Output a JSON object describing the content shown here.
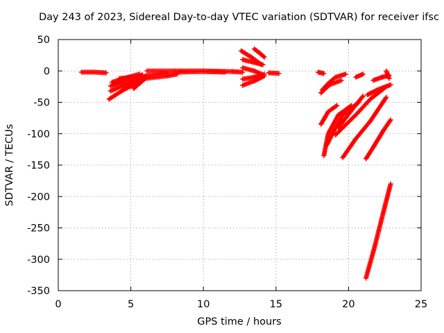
{
  "chart_data": {
    "type": "scatter",
    "title": "Day 243 of 2023, Sidereal Day-to-day VTEC variation (SDTVAR) for receiver ifsc",
    "xlabel": "GPS time / hours",
    "ylabel": "SDTVAR / TECUs",
    "xlim": [
      0,
      25
    ],
    "ylim": [
      -350,
      50
    ],
    "x_ticks": [
      "0",
      "5",
      "10",
      "15",
      "20",
      "25"
    ],
    "y_ticks": [
      "50",
      "0",
      "-50",
      "-100",
      "-150",
      "-200",
      "-250",
      "-300",
      "-350"
    ],
    "grid": true,
    "marker": "plus",
    "color": "#ff0000",
    "series": [
      {
        "points": [
          [
            1.6,
            -2
          ],
          [
            2.5,
            -2
          ],
          [
            3.3,
            -3
          ]
        ]
      },
      {
        "points": [
          [
            3.5,
            -45
          ],
          [
            4.5,
            -30
          ],
          [
            5.8,
            -15
          ]
        ]
      },
      {
        "points": [
          [
            3.6,
            -32
          ],
          [
            4.6,
            -22
          ],
          [
            5.9,
            -10
          ]
        ]
      },
      {
        "points": [
          [
            3.6,
            -24
          ],
          [
            4.6,
            -16
          ],
          [
            5.8,
            -6
          ]
        ]
      },
      {
        "points": [
          [
            3.7,
            -18
          ],
          [
            4.5,
            -12
          ],
          [
            5.6,
            -5
          ]
        ]
      },
      {
        "points": [
          [
            4.2,
            -12
          ],
          [
            5.2,
            -10
          ]
        ]
      },
      {
        "points": [
          [
            5.2,
            -28
          ],
          [
            6,
            -12
          ],
          [
            7.5,
            -8
          ],
          [
            8.2,
            -5
          ]
        ]
      },
      {
        "points": [
          [
            5.0,
            -20
          ],
          [
            6.0,
            -8
          ],
          [
            7.5,
            -3
          ]
        ]
      },
      {
        "points": [
          [
            6.1,
            0
          ],
          [
            8,
            0
          ],
          [
            10,
            0
          ],
          [
            12,
            -1
          ],
          [
            12.7,
            -2
          ]
        ]
      },
      {
        "points": [
          [
            8.2,
            -2
          ],
          [
            10,
            -1
          ],
          [
            11.5,
            -2
          ]
        ]
      },
      {
        "points": [
          [
            12.6,
            32
          ],
          [
            13.3,
            22
          ],
          [
            14.0,
            10
          ]
        ]
      },
      {
        "points": [
          [
            13.5,
            35
          ],
          [
            13.9,
            28
          ],
          [
            14.2,
            22
          ]
        ]
      },
      {
        "points": [
          [
            12.7,
            18
          ],
          [
            13.4,
            14
          ],
          [
            14.1,
            10
          ]
        ]
      },
      {
        "points": [
          [
            12.7,
            5
          ],
          [
            13.5,
            0
          ],
          [
            14.0,
            -5
          ]
        ]
      },
      {
        "points": [
          [
            12.7,
            -23
          ],
          [
            13.5,
            -16
          ],
          [
            14.2,
            -8
          ]
        ]
      },
      {
        "points": [
          [
            12.7,
            -13
          ],
          [
            13.5,
            -10
          ],
          [
            14.2,
            -5
          ]
        ]
      },
      {
        "points": [
          [
            14.5,
            -3
          ],
          [
            15.2,
            -4
          ]
        ]
      },
      {
        "points": [
          [
            17.9,
            -2
          ],
          [
            18.3,
            -4
          ]
        ]
      },
      {
        "points": [
          [
            18.1,
            -35
          ],
          [
            18.7,
            -22
          ],
          [
            19.5,
            -15
          ]
        ]
      },
      {
        "points": [
          [
            18.2,
            -30
          ],
          [
            18.6,
            -20
          ],
          [
            19.0,
            -12
          ]
        ]
      },
      {
        "points": [
          [
            18.3,
            -135
          ],
          [
            18.6,
            -100
          ],
          [
            19.3,
            -70
          ],
          [
            20.2,
            -55
          ]
        ]
      },
      {
        "points": [
          [
            18.1,
            -85
          ],
          [
            18.6,
            -65
          ],
          [
            19.2,
            -55
          ]
        ]
      },
      {
        "points": [
          [
            18.5,
            -118
          ],
          [
            19.0,
            -95
          ],
          [
            19.6,
            -70
          ],
          [
            20.7,
            -50
          ]
        ]
      },
      {
        "points": [
          [
            19.6,
            -138
          ],
          [
            20.5,
            -108
          ],
          [
            21.5,
            -80
          ],
          [
            22.6,
            -42
          ]
        ]
      },
      {
        "points": [
          [
            19.1,
            -102
          ],
          [
            20.5,
            -70
          ],
          [
            21.5,
            -45
          ],
          [
            22.6,
            -25
          ]
        ]
      },
      {
        "points": [
          [
            19.3,
            -90
          ],
          [
            20.3,
            -60
          ],
          [
            21.0,
            -40
          ]
        ]
      },
      {
        "points": [
          [
            19.1,
            -10
          ],
          [
            19.8,
            -5
          ]
        ]
      },
      {
        "points": [
          [
            20.5,
            -10
          ],
          [
            21.0,
            -5
          ]
        ]
      },
      {
        "points": [
          [
            21.2,
            -140
          ],
          [
            21.8,
            -118
          ],
          [
            22.4,
            -95
          ],
          [
            22.9,
            -78
          ]
        ]
      },
      {
        "points": [
          [
            21.3,
            -38
          ],
          [
            22.0,
            -30
          ],
          [
            22.9,
            -22
          ]
        ]
      },
      {
        "points": [
          [
            21.7,
            -15
          ],
          [
            22.3,
            -10
          ],
          [
            22.8,
            -7
          ]
        ]
      },
      {
        "points": [
          [
            22.6,
            0
          ],
          [
            22.7,
            -6
          ],
          [
            22.8,
            -12
          ]
        ]
      },
      {
        "points": [
          [
            21.2,
            -330
          ],
          [
            21.8,
            -280
          ],
          [
            22.4,
            -225
          ],
          [
            22.9,
            -180
          ]
        ]
      }
    ]
  }
}
